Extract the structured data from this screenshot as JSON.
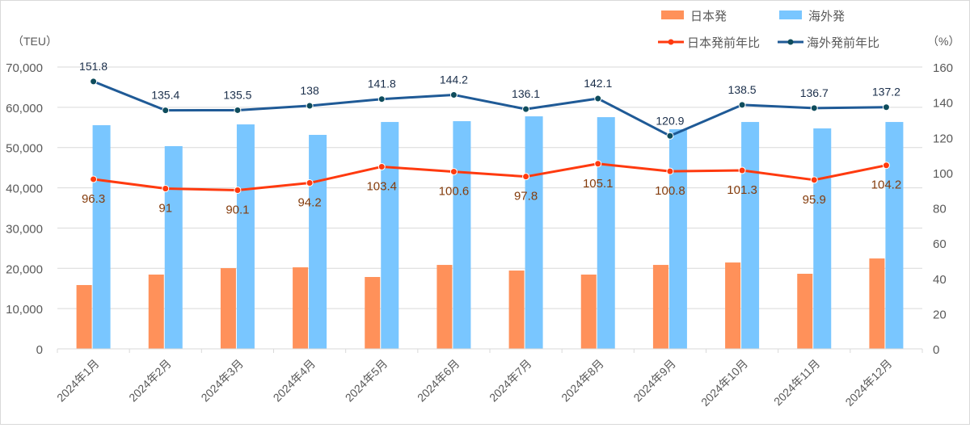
{
  "chart_data": {
    "type": "bar+line",
    "title": "",
    "ylabel_left": "（TEU）",
    "ylabel_right": "（%）",
    "ylim_left": [
      0,
      70000
    ],
    "ylim_right": [
      0,
      160
    ],
    "yticks_left": [
      "0",
      "10,000",
      "20,000",
      "30,000",
      "40,000",
      "50,000",
      "60,000",
      "70,000"
    ],
    "yticks_right": [
      "0",
      "20",
      "40",
      "60",
      "80",
      "100",
      "120",
      "140",
      "160"
    ],
    "grid": true,
    "legend_position": "top-right",
    "categories": [
      "2024年1月",
      "2024年2月",
      "2024年3月",
      "2024年4月",
      "2024年5月",
      "2024年6月",
      "2024年7月",
      "2024年8月",
      "2024年9月",
      "2024年10月",
      "2024年11月",
      "2024年12月"
    ],
    "series": [
      {
        "name": "日本発",
        "type": "bar",
        "axis": "left",
        "color": "#FF915A",
        "values": [
          15850,
          18450,
          20050,
          20250,
          17850,
          20850,
          19450,
          18450,
          20850,
          21450,
          18650,
          22450
        ]
      },
      {
        "name": "海外発",
        "type": "bar",
        "axis": "left",
        "color": "#79C6FF",
        "values": [
          55550,
          50350,
          55750,
          53150,
          56350,
          56550,
          57750,
          57550,
          54550,
          56350,
          54750,
          56350
        ]
      },
      {
        "name": "日本発前年比",
        "type": "line",
        "axis": "right",
        "color": "#FF3A0F",
        "label_color": "#843C0C",
        "values": [
          96.3,
          91,
          90.1,
          94.2,
          103.4,
          100.6,
          97.8,
          105.1,
          100.8,
          101.3,
          95.9,
          104.2
        ],
        "labels": [
          "96.3",
          "91",
          "90.1",
          "94.2",
          "103.4",
          "100.6",
          "97.8",
          "105.1",
          "100.8",
          "101.3",
          "95.9",
          "104.2"
        ]
      },
      {
        "name": "海外発前年比",
        "type": "line",
        "axis": "right",
        "color": "#1F5A96",
        "label_color": "#1A2E4A",
        "values": [
          151.8,
          135.4,
          135.5,
          138,
          141.8,
          144.2,
          136.1,
          142.1,
          120.9,
          138.5,
          136.7,
          137.2
        ],
        "labels": [
          "151.8",
          "135.4",
          "135.5",
          "138",
          "141.8",
          "144.2",
          "136.1",
          "142.1",
          "120.9",
          "138.5",
          "136.7",
          "137.2"
        ]
      }
    ]
  }
}
